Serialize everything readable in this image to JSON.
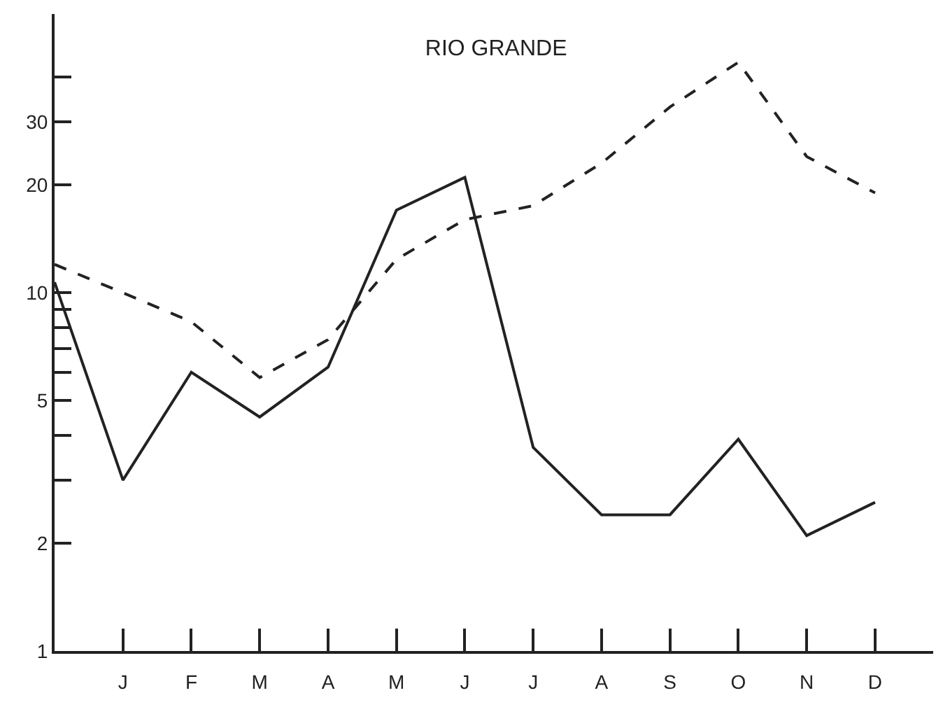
{
  "chart_data": {
    "type": "line",
    "title": "RIO GRANDE",
    "categories": [
      null,
      "J",
      "F",
      "M",
      "A",
      "M",
      "J",
      "J",
      "A",
      "S",
      "O",
      "N",
      "D"
    ],
    "series": [
      {
        "color": "#222222",
        "line_style": "solid",
        "values": [
          10.7,
          3.0,
          6.0,
          4.5,
          6.2,
          17,
          21,
          3.7,
          2.4,
          2.4,
          3.9,
          2.1,
          2.6
        ]
      },
      {
        "color": "#222222",
        "line_style": "dashed",
        "values": [
          12,
          10,
          8.3,
          5.8,
          7.4,
          12.4,
          16,
          17.5,
          23,
          33,
          44,
          24,
          19
        ]
      }
    ],
    "log": "y",
    "ylim": [
      1,
      60
    ],
    "yticks": [
      1,
      2,
      {
        "value": 3,
        "label": null
      },
      {
        "value": 4,
        "label": null
      },
      5,
      {
        "value": 6,
        "label": null
      },
      {
        "value": 7,
        "label": null
      },
      {
        "value": 8,
        "label": null
      },
      {
        "value": 9,
        "label": null
      },
      10,
      20,
      30,
      {
        "value": 40,
        "label": null
      }
    ],
    "grid": false,
    "marker": "none"
  }
}
